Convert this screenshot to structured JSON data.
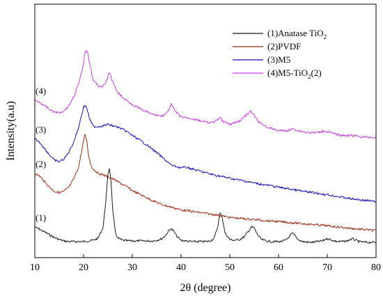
{
  "chart_data": {
    "type": "line",
    "xlabel": "2θ (degree)",
    "ylabel": "Intensity(a.u)",
    "xlim": [
      10,
      80
    ],
    "x_ticks": [
      "10",
      "20",
      "30",
      "40",
      "50",
      "60",
      "70",
      "80"
    ],
    "y_ticks_shown": false,
    "grid": false,
    "legend_position": "top-right",
    "series": [
      {
        "name": "(1)Anatase TiO2",
        "legend_label": "(1)Anatase TiO",
        "legend_subscript": "2",
        "curve_label": "(1)",
        "color": "#1a1a1a",
        "x": [
          10,
          11,
          12,
          13,
          14,
          15,
          16,
          17,
          18,
          19,
          20,
          21,
          22,
          23,
          24,
          24.5,
          25,
          25.3,
          25.6,
          26,
          26.5,
          27,
          28,
          29,
          30,
          31,
          32,
          33,
          34,
          35,
          36,
          36.8,
          37.5,
          38,
          38.5,
          39.2,
          40,
          41,
          42,
          43,
          44,
          45,
          46,
          46.8,
          47.5,
          48,
          48.4,
          49,
          50,
          51,
          52,
          53,
          53.8,
          54.4,
          55,
          55.6,
          56.5,
          57.5,
          58.5,
          59.5,
          60.5,
          61.5,
          62.3,
          62.8,
          63.3,
          64,
          65,
          66,
          67,
          68,
          69,
          69.7,
          70.2,
          71,
          72,
          73,
          74,
          74.7,
          75.2,
          75.8,
          76.5,
          77.5,
          78.5,
          79.5,
          80
        ],
        "y": [
          22,
          19,
          15,
          11,
          7,
          4,
          2,
          1,
          1,
          1,
          1,
          2,
          3,
          6,
          22,
          55,
          98,
          108,
          92,
          45,
          15,
          6,
          3,
          2,
          2,
          2,
          2,
          2,
          2,
          3,
          5,
          10,
          17,
          20,
          16,
          8,
          3,
          2,
          1,
          1,
          1,
          1,
          2,
          6,
          22,
          42,
          38,
          14,
          4,
          3,
          4,
          8,
          16,
          22,
          21,
          12,
          4,
          2,
          1,
          1,
          1,
          3,
          9,
          13,
          10,
          4,
          1,
          0,
          0,
          1,
          2,
          5,
          5,
          3,
          1,
          1,
          2,
          4,
          5,
          3,
          1,
          0,
          0,
          0,
          0
        ]
      },
      {
        "name": "(2)PVDF",
        "legend_label": "(2)PVDF",
        "curve_label": "(2)",
        "color": "#9c2b13",
        "x": [
          10,
          11,
          12,
          13,
          14,
          15,
          16,
          17,
          18,
          19,
          19.5,
          20,
          20.3,
          20.6,
          21,
          21.5,
          22,
          23,
          24,
          25,
          26,
          27,
          28,
          29,
          30,
          32,
          34,
          36,
          38,
          40,
          42,
          44,
          46,
          48,
          50,
          55,
          60,
          65,
          70,
          75,
          80
        ],
        "y": [
          100,
          96,
          88,
          80,
          74,
          72,
          74,
          80,
          92,
          110,
          128,
          147,
          156,
          150,
          128,
          112,
          106,
          100,
          98,
          95,
          92,
          88,
          84,
          80,
          75,
          68,
          61,
          55,
          51,
          47,
          45,
          43,
          41,
          39,
          36,
          33,
          30,
          27,
          24,
          20,
          17
        ]
      },
      {
        "name": "(3)M5",
        "legend_label": "(3)M5",
        "curve_label": "(3)",
        "color": "#1010b4",
        "x": [
          10,
          11,
          12,
          13,
          14,
          15,
          16,
          17,
          18,
          19,
          19.5,
          20,
          20.4,
          20.8,
          21.3,
          22,
          23,
          24,
          25,
          26,
          27,
          28,
          29,
          30,
          32,
          34,
          36,
          38,
          40,
          41,
          42,
          44,
          46,
          48,
          50,
          55,
          60,
          65,
          70,
          75,
          80
        ],
        "y": [
          150,
          145,
          136,
          127,
          119,
          117,
          121,
          131,
          146,
          167,
          182,
          196,
          199,
          191,
          178,
          168,
          168,
          169,
          171,
          169,
          167,
          164,
          160,
          155,
          146,
          136,
          124,
          112,
          108,
          109,
          107,
          103,
          99,
          96,
          93,
          86,
          80,
          74,
          69,
          63,
          59
        ]
      },
      {
        "name": "(4)M5-TiO2(2)",
        "legend_label": "(4)M5-TiO",
        "legend_subscript": "2",
        "legend_suffix": "(2)",
        "curve_label": "(4)",
        "color": "#c83ce6",
        "x": [
          10,
          11,
          12,
          13,
          14,
          15,
          16,
          17,
          18,
          19,
          19.8,
          20.3,
          20.8,
          21.3,
          22,
          23,
          24,
          24.6,
          25.1,
          25.4,
          25.8,
          26.5,
          27,
          28,
          30,
          32,
          34,
          36,
          37.2,
          38,
          38.8,
          40,
          42,
          44,
          46,
          47.3,
          48,
          48.7,
          50,
          52,
          53.5,
          54.3,
          55,
          56,
          58,
          60,
          62,
          63,
          64,
          66,
          68,
          69.5,
          71,
          73,
          75,
          77,
          80
        ],
        "y": [
          206,
          203,
          198,
          193,
          189,
          188,
          191,
          198,
          212,
          230,
          252,
          276,
          278,
          258,
          235,
          227,
          226,
          232,
          243,
          246,
          236,
          224,
          218,
          210,
          200,
          192,
          186,
          183,
          188,
          200,
          190,
          182,
          180,
          176,
          173,
          176,
          181,
          175,
          171,
          176,
          185,
          190,
          184,
          174,
          166,
          162,
          162,
          165,
          162,
          159,
          159,
          162,
          158,
          155,
          155,
          153,
          152
        ]
      }
    ]
  }
}
